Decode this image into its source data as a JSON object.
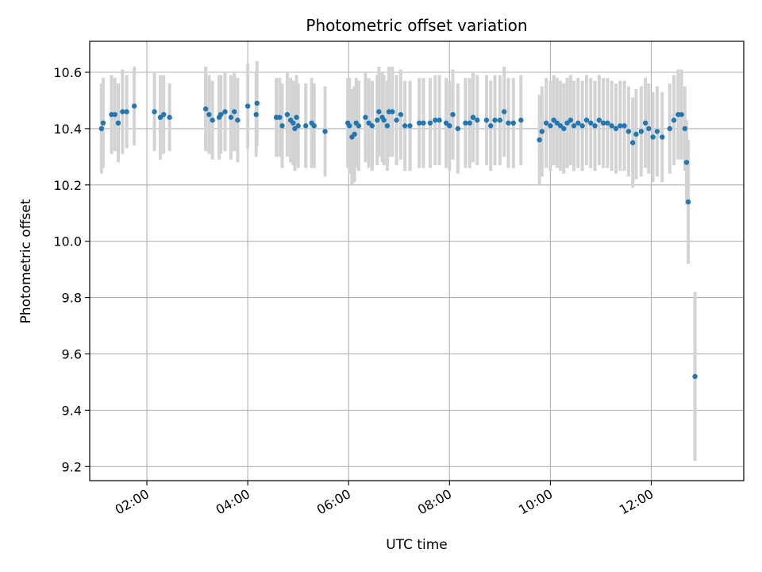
{
  "chart_data": {
    "type": "scatter",
    "title": "Photometric offset variation",
    "xlabel": "UTC time",
    "ylabel": "Photometric offset",
    "x_unit": "time (UTC, hours)",
    "xlim": [
      "00:52",
      "13:50"
    ],
    "ylim": [
      9.15,
      10.71
    ],
    "x_ticks": [
      "02:00",
      "04:00",
      "06:00",
      "08:00",
      "10:00",
      "12:00"
    ],
    "y_ticks": [
      "9.2",
      "9.4",
      "9.6",
      "9.8",
      "10.0",
      "10.2",
      "10.4",
      "10.6"
    ],
    "grid": true,
    "marker_color": "#1f77b4",
    "errorbar_color": "#d3d3d3",
    "series": [
      {
        "points": [
          {
            "t": "01:06",
            "y": 10.4,
            "err": 0.16
          },
          {
            "t": "01:08",
            "y": 10.42,
            "err": 0.16
          },
          {
            "t": "01:18",
            "y": 10.45,
            "err": 0.14
          },
          {
            "t": "01:22",
            "y": 10.45,
            "err": 0.13
          },
          {
            "t": "01:26",
            "y": 10.42,
            "err": 0.14
          },
          {
            "t": "01:31",
            "y": 10.46,
            "err": 0.15
          },
          {
            "t": "01:36",
            "y": 10.46,
            "err": 0.13
          },
          {
            "t": "01:45",
            "y": 10.48,
            "err": 0.14
          },
          {
            "t": "02:09",
            "y": 10.46,
            "err": 0.14
          },
          {
            "t": "02:16",
            "y": 10.44,
            "err": 0.15
          },
          {
            "t": "02:20",
            "y": 10.45,
            "err": 0.14
          },
          {
            "t": "02:27",
            "y": 10.44,
            "err": 0.12
          },
          {
            "t": "03:10",
            "y": 10.47,
            "err": 0.15
          },
          {
            "t": "03:14",
            "y": 10.45,
            "err": 0.14
          },
          {
            "t": "03:18",
            "y": 10.43,
            "err": 0.14
          },
          {
            "t": "03:26",
            "y": 10.44,
            "err": 0.15
          },
          {
            "t": "03:28",
            "y": 10.45,
            "err": 0.14
          },
          {
            "t": "03:33",
            "y": 10.46,
            "err": 0.14
          },
          {
            "t": "03:40",
            "y": 10.44,
            "err": 0.15
          },
          {
            "t": "03:44",
            "y": 10.46,
            "err": 0.14
          },
          {
            "t": "03:48",
            "y": 10.43,
            "err": 0.15
          },
          {
            "t": "04:00",
            "y": 10.48,
            "err": 0.15
          },
          {
            "t": "04:10",
            "y": 10.45,
            "err": 0.15
          },
          {
            "t": "04:11",
            "y": 10.49,
            "err": 0.15
          },
          {
            "t": "04:34",
            "y": 10.44,
            "err": 0.14
          },
          {
            "t": "04:38",
            "y": 10.44,
            "err": 0.14
          },
          {
            "t": "04:41",
            "y": 10.41,
            "err": 0.15
          },
          {
            "t": "04:47",
            "y": 10.45,
            "err": 0.15
          },
          {
            "t": "04:51",
            "y": 10.43,
            "err": 0.15
          },
          {
            "t": "04:54",
            "y": 10.42,
            "err": 0.15
          },
          {
            "t": "04:56",
            "y": 10.4,
            "err": 0.15
          },
          {
            "t": "04:58",
            "y": 10.44,
            "err": 0.15
          },
          {
            "t": "05:00",
            "y": 10.41,
            "err": 0.15
          },
          {
            "t": "05:09",
            "y": 10.41,
            "err": 0.15
          },
          {
            "t": "05:16",
            "y": 10.42,
            "err": 0.16
          },
          {
            "t": "05:19",
            "y": 10.41,
            "err": 0.15
          },
          {
            "t": "05:32",
            "y": 10.39,
            "err": 0.16
          },
          {
            "t": "05:59",
            "y": 10.42,
            "err": 0.16
          },
          {
            "t": "06:01",
            "y": 10.41,
            "err": 0.17
          },
          {
            "t": "06:04",
            "y": 10.37,
            "err": 0.17
          },
          {
            "t": "06:07",
            "y": 10.38,
            "err": 0.17
          },
          {
            "t": "06:09",
            "y": 10.42,
            "err": 0.16
          },
          {
            "t": "06:12",
            "y": 10.41,
            "err": 0.16
          },
          {
            "t": "06:20",
            "y": 10.44,
            "err": 0.16
          },
          {
            "t": "06:24",
            "y": 10.42,
            "err": 0.16
          },
          {
            "t": "06:28",
            "y": 10.41,
            "err": 0.16
          },
          {
            "t": "06:34",
            "y": 10.43,
            "err": 0.16
          },
          {
            "t": "06:36",
            "y": 10.46,
            "err": 0.16
          },
          {
            "t": "06:40",
            "y": 10.44,
            "err": 0.16
          },
          {
            "t": "06:42",
            "y": 10.43,
            "err": 0.16
          },
          {
            "t": "06:46",
            "y": 10.41,
            "err": 0.16
          },
          {
            "t": "06:48",
            "y": 10.46,
            "err": 0.16
          },
          {
            "t": "06:52",
            "y": 10.46,
            "err": 0.16
          },
          {
            "t": "06:57",
            "y": 10.43,
            "err": 0.16
          },
          {
            "t": "07:02",
            "y": 10.45,
            "err": 0.16
          },
          {
            "t": "07:07",
            "y": 10.41,
            "err": 0.16
          },
          {
            "t": "07:13",
            "y": 10.41,
            "err": 0.16
          },
          {
            "t": "07:24",
            "y": 10.42,
            "err": 0.16
          },
          {
            "t": "07:29",
            "y": 10.42,
            "err": 0.16
          },
          {
            "t": "07:37",
            "y": 10.42,
            "err": 0.16
          },
          {
            "t": "07:43",
            "y": 10.43,
            "err": 0.16
          },
          {
            "t": "07:48",
            "y": 10.43,
            "err": 0.16
          },
          {
            "t": "07:56",
            "y": 10.42,
            "err": 0.16
          },
          {
            "t": "08:00",
            "y": 10.41,
            "err": 0.16
          },
          {
            "t": "08:04",
            "y": 10.45,
            "err": 0.16
          },
          {
            "t": "08:10",
            "y": 10.4,
            "err": 0.16
          },
          {
            "t": "08:19",
            "y": 10.42,
            "err": 0.16
          },
          {
            "t": "08:24",
            "y": 10.42,
            "err": 0.16
          },
          {
            "t": "08:28",
            "y": 10.44,
            "err": 0.16
          },
          {
            "t": "08:33",
            "y": 10.43,
            "err": 0.16
          },
          {
            "t": "08:44",
            "y": 10.43,
            "err": 0.16
          },
          {
            "t": "08:49",
            "y": 10.41,
            "err": 0.16
          },
          {
            "t": "08:54",
            "y": 10.43,
            "err": 0.16
          },
          {
            "t": "09:00",
            "y": 10.43,
            "err": 0.16
          },
          {
            "t": "09:05",
            "y": 10.46,
            "err": 0.16
          },
          {
            "t": "09:10",
            "y": 10.42,
            "err": 0.16
          },
          {
            "t": "09:16",
            "y": 10.42,
            "err": 0.16
          },
          {
            "t": "09:25",
            "y": 10.43,
            "err": 0.16
          },
          {
            "t": "09:47",
            "y": 10.36,
            "err": 0.16
          },
          {
            "t": "09:50",
            "y": 10.39,
            "err": 0.16
          },
          {
            "t": "09:55",
            "y": 10.42,
            "err": 0.16
          },
          {
            "t": "10:00",
            "y": 10.41,
            "err": 0.16
          },
          {
            "t": "10:04",
            "y": 10.43,
            "err": 0.16
          },
          {
            "t": "10:08",
            "y": 10.42,
            "err": 0.16
          },
          {
            "t": "10:12",
            "y": 10.41,
            "err": 0.16
          },
          {
            "t": "10:16",
            "y": 10.4,
            "err": 0.16
          },
          {
            "t": "10:20",
            "y": 10.42,
            "err": 0.16
          },
          {
            "t": "10:24",
            "y": 10.43,
            "err": 0.16
          },
          {
            "t": "10:28",
            "y": 10.41,
            "err": 0.16
          },
          {
            "t": "10:33",
            "y": 10.42,
            "err": 0.16
          },
          {
            "t": "10:38",
            "y": 10.41,
            "err": 0.16
          },
          {
            "t": "10:43",
            "y": 10.43,
            "err": 0.16
          },
          {
            "t": "10:48",
            "y": 10.42,
            "err": 0.16
          },
          {
            "t": "10:53",
            "y": 10.41,
            "err": 0.16
          },
          {
            "t": "10:58",
            "y": 10.43,
            "err": 0.16
          },
          {
            "t": "11:03",
            "y": 10.42,
            "err": 0.16
          },
          {
            "t": "11:08",
            "y": 10.42,
            "err": 0.16
          },
          {
            "t": "11:13",
            "y": 10.41,
            "err": 0.16
          },
          {
            "t": "11:18",
            "y": 10.4,
            "err": 0.16
          },
          {
            "t": "11:23",
            "y": 10.41,
            "err": 0.16
          },
          {
            "t": "11:28",
            "y": 10.41,
            "err": 0.16
          },
          {
            "t": "11:33",
            "y": 10.39,
            "err": 0.16
          },
          {
            "t": "11:38",
            "y": 10.35,
            "err": 0.16
          },
          {
            "t": "11:42",
            "y": 10.38,
            "err": 0.16
          },
          {
            "t": "11:48",
            "y": 10.39,
            "err": 0.16
          },
          {
            "t": "11:53",
            "y": 10.42,
            "err": 0.16
          },
          {
            "t": "11:57",
            "y": 10.4,
            "err": 0.16
          },
          {
            "t": "12:02",
            "y": 10.37,
            "err": 0.16
          },
          {
            "t": "12:07",
            "y": 10.39,
            "err": 0.16
          },
          {
            "t": "12:13",
            "y": 10.37,
            "err": 0.16
          },
          {
            "t": "12:22",
            "y": 10.4,
            "err": 0.16
          },
          {
            "t": "12:27",
            "y": 10.43,
            "err": 0.16
          },
          {
            "t": "12:32",
            "y": 10.45,
            "err": 0.16
          },
          {
            "t": "12:36",
            "y": 10.45,
            "err": 0.16
          },
          {
            "t": "12:40",
            "y": 10.4,
            "err": 0.15
          },
          {
            "t": "12:42",
            "y": 10.28,
            "err": 0.15
          },
          {
            "t": "12:44",
            "y": 10.14,
            "err": 0.22
          },
          {
            "t": "12:52",
            "y": 9.52,
            "err": 0.3
          }
        ]
      }
    ]
  }
}
